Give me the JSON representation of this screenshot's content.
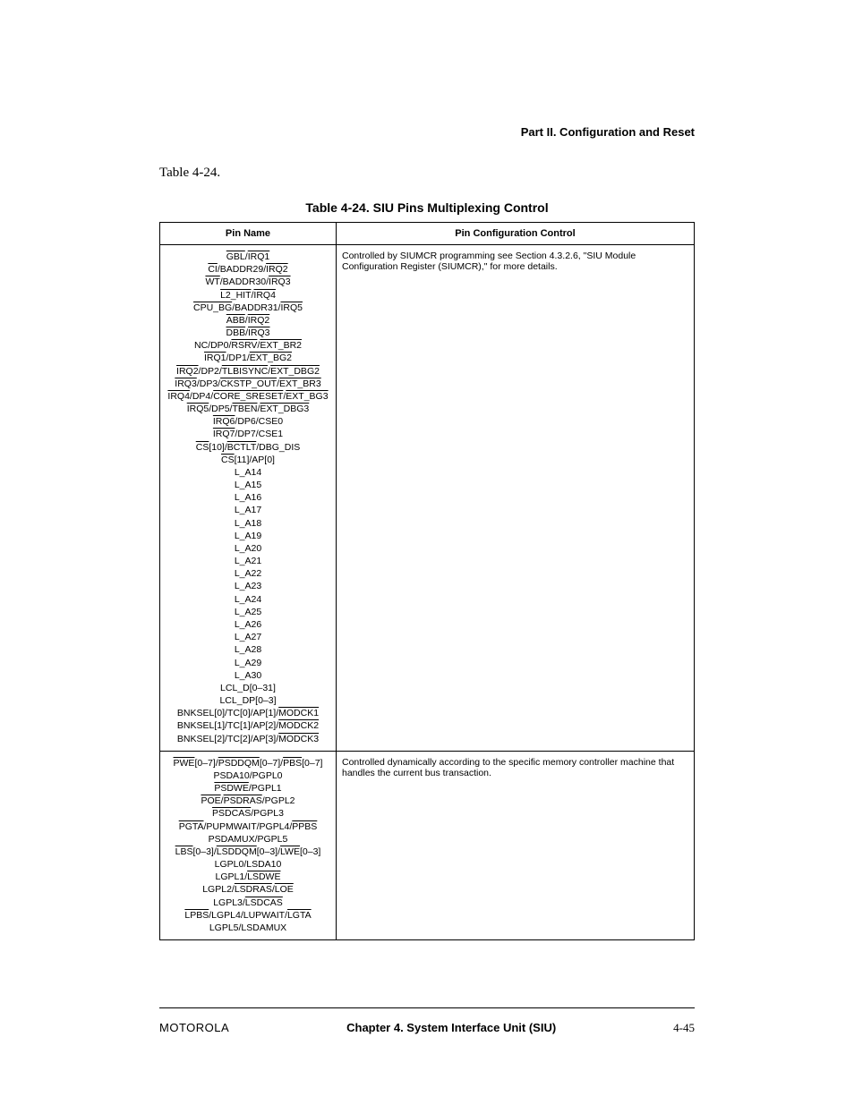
{
  "header": {
    "section_title": "Part II. Configuration and Reset"
  },
  "intro": {
    "text": "Table 4-24."
  },
  "table": {
    "caption": "Table 4-24. SIU Pins Multiplexing Control",
    "col_widths": [
      "33%",
      "67%"
    ],
    "headers": [
      "Pin Name",
      "Pin Configuration Control"
    ],
    "rows": [
      {
        "pins": [
          [
            {
              "t": "GBL",
              "ol": true
            },
            {
              "t": "/"
            },
            {
              "t": "IRQ1",
              "ol": true
            }
          ],
          [
            {
              "t": "CI",
              "ol": true
            },
            {
              "t": "/BADDR29/"
            },
            {
              "t": "IRQ2",
              "ol": true
            }
          ],
          [
            {
              "t": "WT",
              "ol": true
            },
            {
              "t": "/BADDR30/"
            },
            {
              "t": "IRQ3",
              "ol": true
            }
          ],
          [
            {
              "t": "L2_HIT",
              "ol": true
            },
            {
              "t": "/"
            },
            {
              "t": "IRQ4",
              "ol": true
            }
          ],
          [
            {
              "t": "CPU_BG",
              "ol": true
            },
            {
              "t": "/BADDR31/"
            },
            {
              "t": "IRQ5",
              "ol": true
            }
          ],
          [
            {
              "t": "ABB",
              "ol": true
            },
            {
              "t": "/"
            },
            {
              "t": "IRQ2",
              "ol": true
            }
          ],
          [
            {
              "t": "DBB",
              "ol": true
            },
            {
              "t": "/"
            },
            {
              "t": "IRQ3",
              "ol": true
            }
          ],
          [
            {
              "t": "NC/DP0/"
            },
            {
              "t": "RSRV",
              "ol": true
            },
            {
              "t": "/"
            },
            {
              "t": "EXT_BR2",
              "ol": true
            }
          ],
          [
            {
              "t": "IRQ1",
              "ol": true
            },
            {
              "t": "/DP1/"
            },
            {
              "t": "EXT_BG2",
              "ol": true
            }
          ],
          [
            {
              "t": "IRQ2",
              "ol": true
            },
            {
              "t": "/DP2/"
            },
            {
              "t": "TLBISYNC",
              "ol": true
            },
            {
              "t": "/"
            },
            {
              "t": "EXT_DBG2",
              "ol": true
            }
          ],
          [
            {
              "t": "IRQ3",
              "ol": true
            },
            {
              "t": "/DP3/"
            },
            {
              "t": "CKSTP_OUT",
              "ol": true
            },
            {
              "t": "/"
            },
            {
              "t": "EXT_BR3",
              "ol": true
            }
          ],
          [
            {
              "t": "IRQ4",
              "ol": true
            },
            {
              "t": "/DP4/"
            },
            {
              "t": "CORE_SRESET",
              "ol": true
            },
            {
              "t": "/"
            },
            {
              "t": "EXT_BG3",
              "ol": true
            }
          ],
          [
            {
              "t": "IRQ5",
              "ol": true
            },
            {
              "t": "/DP5/"
            },
            {
              "t": "TBEN",
              "ol": true
            },
            {
              "t": "/"
            },
            {
              "t": "EXT_DBG3",
              "ol": true
            }
          ],
          [
            {
              "t": "IRQ6",
              "ol": true
            },
            {
              "t": "/DP6/CSE0"
            }
          ],
          [
            {
              "t": "IRQ7",
              "ol": true
            },
            {
              "t": "/DP7/CSE1"
            }
          ],
          [
            {
              "t": "CS",
              "ol": true
            },
            {
              "t": "[10]/"
            },
            {
              "t": "BCTLT",
              "ol": true
            },
            {
              "t": "/DBG_DIS"
            }
          ],
          [
            {
              "t": "CS",
              "ol": true
            },
            {
              "t": "[11]/AP[0]"
            }
          ],
          [
            {
              "t": "L_A14"
            }
          ],
          [
            {
              "t": "L_A15"
            }
          ],
          [
            {
              "t": "L_A16"
            }
          ],
          [
            {
              "t": "L_A17"
            }
          ],
          [
            {
              "t": "L_A18"
            }
          ],
          [
            {
              "t": "L_A19"
            }
          ],
          [
            {
              "t": "L_A20"
            }
          ],
          [
            {
              "t": "L_A21"
            }
          ],
          [
            {
              "t": "L_A22"
            }
          ],
          [
            {
              "t": "L_A23"
            }
          ],
          [
            {
              "t": "L_A24"
            }
          ],
          [
            {
              "t": "L_A25"
            }
          ],
          [
            {
              "t": "L_A26"
            }
          ],
          [
            {
              "t": "L_A27"
            }
          ],
          [
            {
              "t": "L_A28"
            }
          ],
          [
            {
              "t": "L_A29"
            }
          ],
          [
            {
              "t": "L_A30"
            }
          ],
          [
            {
              "t": "LCL_D[0–31]"
            }
          ],
          [
            {
              "t": "LCL_DP[0–3]"
            }
          ],
          [
            {
              "t": "BNKSEL[0]/TC[0]/AP[1]/"
            },
            {
              "t": "MODCK1",
              "ol": true
            }
          ],
          [
            {
              "t": "BNKSEL[1]/TC[1]/AP[2]/"
            },
            {
              "t": "MODCK2",
              "ol": true
            }
          ],
          [
            {
              "t": "BNKSEL[2]/TC[2]/AP[3]/"
            },
            {
              "t": "MODCK3",
              "ol": true
            }
          ]
        ],
        "desc": "Controlled by SIUMCR programming see Section 4.3.2.6, \"SIU Module Configuration Register (SIUMCR),\" for more details."
      },
      {
        "pins": [
          [
            {
              "t": "PWE",
              "ol": true
            },
            {
              "t": "[0–7]/"
            },
            {
              "t": "PSDDQM",
              "ol": true
            },
            {
              "t": "[0–7]/"
            },
            {
              "t": "PBS",
              "ol": true
            },
            {
              "t": "[0–7]"
            }
          ],
          [
            {
              "t": "PSDA10/PGPL0"
            }
          ],
          [
            {
              "t": "PSDWE",
              "ol": true
            },
            {
              "t": "/PGPL1"
            }
          ],
          [
            {
              "t": "POE",
              "ol": true
            },
            {
              "t": "/"
            },
            {
              "t": "PSDRAS",
              "ol": true
            },
            {
              "t": "/PGPL2"
            }
          ],
          [
            {
              "t": "PSDCAS",
              "ol": true
            },
            {
              "t": "/PGPL3"
            }
          ],
          [
            {
              "t": "PGTA",
              "ol": true
            },
            {
              "t": "/PUPMWAIT/PGPL4/"
            },
            {
              "t": "PPBS",
              "ol": true
            }
          ],
          [
            {
              "t": "PSDAMUX/PGPL5"
            }
          ],
          [
            {
              "t": "LBS",
              "ol": true
            },
            {
              "t": "[0–3]/"
            },
            {
              "t": "LSDDQM",
              "ol": true
            },
            {
              "t": "[0–3]/"
            },
            {
              "t": "LWE",
              "ol": true
            },
            {
              "t": "[0–3]"
            }
          ],
          [
            {
              "t": "LGPL0/LSDA10"
            }
          ],
          [
            {
              "t": "LGPL1/"
            },
            {
              "t": "LSDWE",
              "ol": true
            }
          ],
          [
            {
              "t": "LGPL2/"
            },
            {
              "t": "LSDRAS",
              "ol": true
            },
            {
              "t": "/"
            },
            {
              "t": "LOE",
              "ol": true
            }
          ],
          [
            {
              "t": "LGPL3/"
            },
            {
              "t": "LSDCAS",
              "ol": true
            }
          ],
          [
            {
              "t": "LPBS",
              "ol": true
            },
            {
              "t": "/LGPL4/LUPWAIT/"
            },
            {
              "t": "LGTA",
              "ol": true
            }
          ],
          [
            {
              "t": "LGPL5/LSDAMUX"
            }
          ]
        ],
        "desc": "Controlled dynamically according to the specific memory controller machine that handles the current bus transaction."
      }
    ]
  },
  "footer": {
    "left": "MOTOROLA",
    "center": "Chapter 4.  System Interface Unit (SIU)",
    "right": "4-45"
  }
}
